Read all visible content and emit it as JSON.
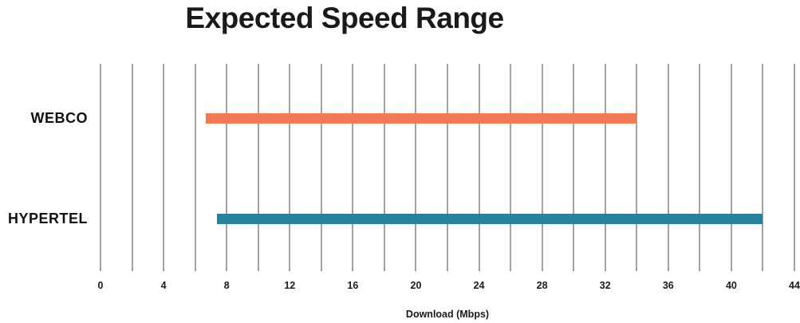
{
  "chart_data": {
    "type": "bar",
    "subtype": "horizontal-range-bars",
    "title": "Expected Speed Range",
    "xlabel": "Download (Mbps)",
    "categories": [
      "WEBCO",
      "HYPERTEL"
    ],
    "series": [
      {
        "name": "WEBCO",
        "range_mbps": [
          6.7,
          34
        ],
        "color": "#F07A56"
      },
      {
        "name": "HYPERTEL",
        "range_mbps": [
          7.4,
          42
        ],
        "color": "#27839C"
      }
    ],
    "xlim": [
      0,
      44
    ],
    "xticks": [
      0,
      4,
      8,
      12,
      16,
      20,
      24,
      28,
      32,
      36,
      40,
      44
    ],
    "gridline_step": 2,
    "grid": true,
    "gridline_color": "#a6a19c",
    "text_color": "#1a1a1a",
    "background": "#ffffff",
    "legend": "none"
  }
}
